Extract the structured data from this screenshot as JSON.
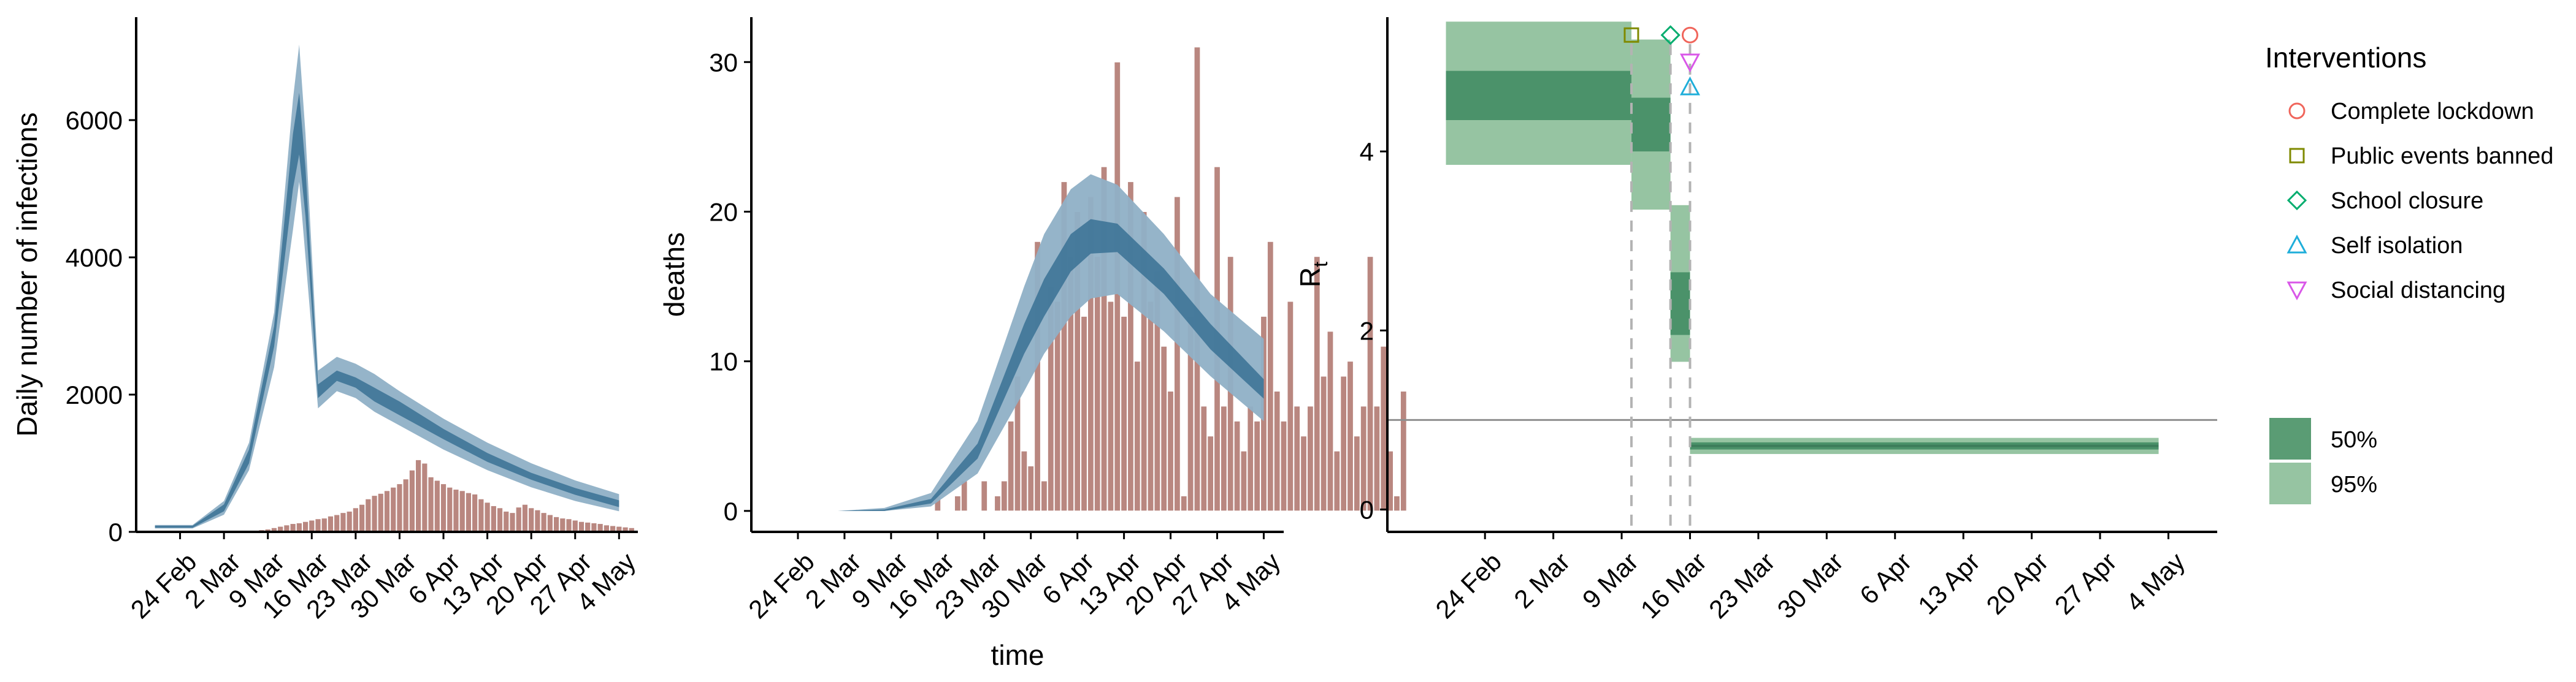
{
  "chart_data": [
    {
      "type": "area",
      "panel": "infections",
      "ylabel": "Daily number of infections",
      "xlabel": "",
      "x_ticks": [
        "24 Feb",
        "2 Mar",
        "9 Mar",
        "16 Mar",
        "23 Mar",
        "30 Mar",
        "6 Apr",
        "13 Apr",
        "20 Apr",
        "27 Apr",
        "4 May"
      ],
      "y_ticks": [
        "0",
        "2000",
        "4000",
        "6000"
      ],
      "ylim": [
        0,
        7500
      ],
      "colors": {
        "band95": "#8fb0c6",
        "band50": "#3e7497",
        "bars": "#b98780"
      },
      "series": [
        {
          "name": "infections_ci95",
          "x": [
            "2020-02-20",
            "2020-02-26",
            "2020-03-02",
            "2020-03-06",
            "2020-03-10",
            "2020-03-13",
            "2020-03-14",
            "2020-03-15",
            "2020-03-17",
            "2020-03-20",
            "2020-03-23",
            "2020-03-26",
            "2020-03-30",
            "2020-04-06",
            "2020-04-13",
            "2020-04-20",
            "2020-04-27",
            "2020-05-04"
          ],
          "lower": [
            50,
            50,
            250,
            900,
            2400,
            4400,
            5100,
            4000,
            1800,
            2050,
            1950,
            1750,
            1550,
            1200,
            900,
            650,
            450,
            300
          ],
          "upper": [
            100,
            100,
            450,
            1300,
            3200,
            6300,
            7100,
            5800,
            2350,
            2550,
            2450,
            2300,
            2050,
            1650,
            1300,
            1000,
            750,
            550
          ]
        },
        {
          "name": "infections_ci50",
          "x": [
            "2020-02-20",
            "2020-02-26",
            "2020-03-02",
            "2020-03-06",
            "2020-03-10",
            "2020-03-13",
            "2020-03-14",
            "2020-03-15",
            "2020-03-17",
            "2020-03-20",
            "2020-03-23",
            "2020-03-26",
            "2020-03-30",
            "2020-04-06",
            "2020-04-13",
            "2020-04-20",
            "2020-04-27",
            "2020-05-04"
          ],
          "lower": [
            60,
            60,
            300,
            1000,
            2700,
            5000,
            5500,
            4600,
            1950,
            2200,
            2100,
            1900,
            1700,
            1350,
            1020,
            760,
            540,
            360
          ],
          "upper": [
            90,
            90,
            400,
            1200,
            3000,
            5800,
            6400,
            5300,
            2150,
            2350,
            2250,
            2100,
            1900,
            1500,
            1150,
            860,
            640,
            460
          ]
        }
      ],
      "bars": {
        "x_start": "2020-03-04",
        "values": [
          0,
          0,
          10,
          20,
          30,
          40,
          60,
          80,
          100,
          120,
          130,
          150,
          170,
          190,
          200,
          230,
          250,
          280,
          300,
          350,
          400,
          480,
          530,
          560,
          600,
          650,
          700,
          770,
          900,
          1050,
          1000,
          800,
          750,
          700,
          650,
          620,
          600,
          570,
          550,
          480,
          430,
          380,
          350,
          300,
          280,
          360,
          400,
          350,
          320,
          280,
          250,
          220,
          200,
          190,
          170,
          150,
          140,
          130,
          120,
          100,
          90,
          80,
          70,
          60
        ]
      }
    },
    {
      "type": "bar",
      "panel": "deaths",
      "ylabel": "deaths",
      "xlabel": "time",
      "x_ticks": [
        "24 Feb",
        "2 Mar",
        "9 Mar",
        "16 Mar",
        "23 Mar",
        "30 Mar",
        "6 Apr",
        "13 Apr",
        "20 Apr",
        "27 Apr",
        "4 May"
      ],
      "y_ticks": [
        "0",
        "10",
        "20",
        "30"
      ],
      "ylim": [
        -1.4,
        33
      ],
      "colors": {
        "band95": "#8fb0c6",
        "band50": "#3e7497",
        "bars": "#b98780"
      },
      "series": [
        {
          "name": "deaths_ci95",
          "x": [
            "2020-03-01",
            "2020-03-08",
            "2020-03-15",
            "2020-03-22",
            "2020-03-29",
            "2020-04-01",
            "2020-04-05",
            "2020-04-08",
            "2020-04-12",
            "2020-04-19",
            "2020-04-26",
            "2020-05-04"
          ],
          "lower": [
            0,
            0,
            0.3,
            2.5,
            8,
            10.5,
            13,
            14.2,
            14.5,
            12,
            9,
            6
          ],
          "upper": [
            0,
            0.2,
            1.2,
            6,
            15,
            18.5,
            21.5,
            22.5,
            21.8,
            18.5,
            14.5,
            11.5
          ]
        },
        {
          "name": "deaths_ci50",
          "x": [
            "2020-03-01",
            "2020-03-08",
            "2020-03-15",
            "2020-03-22",
            "2020-03-29",
            "2020-04-01",
            "2020-04-05",
            "2020-04-08",
            "2020-04-12",
            "2020-04-19",
            "2020-04-26",
            "2020-05-04"
          ],
          "lower": [
            0,
            0,
            0.5,
            3.5,
            10.5,
            13,
            16,
            17.2,
            17.3,
            14.5,
            10.8,
            7.5
          ],
          "upper": [
            0,
            0.1,
            0.8,
            4.5,
            12.5,
            15.5,
            18.5,
            19.5,
            19.2,
            16.2,
            12.5,
            8.8
          ]
        }
      ],
      "bars": {
        "x_start": "2020-03-16",
        "values": [
          1,
          0,
          0,
          1,
          2,
          0,
          0,
          2,
          0,
          1,
          2,
          6,
          9,
          4,
          3,
          18,
          2,
          15,
          14,
          22,
          17,
          20,
          13,
          21,
          17,
          23,
          14,
          30,
          13,
          22,
          10,
          20,
          14,
          16,
          11,
          8,
          21,
          1,
          13,
          31,
          7,
          5,
          23,
          7,
          17,
          6,
          4,
          7,
          6,
          13,
          18,
          8,
          6,
          14,
          7,
          5,
          7,
          17,
          9,
          12,
          4,
          9,
          10,
          5,
          7,
          17,
          7,
          11,
          4,
          1,
          8
        ]
      }
    },
    {
      "type": "line",
      "panel": "Rt",
      "ylabel": "R",
      "ylabel_sub": "t",
      "xlabel": "",
      "x_ticks": [
        "24 Feb",
        "2 Mar",
        "9 Mar",
        "16 Mar",
        "23 Mar",
        "30 Mar",
        "6 Apr",
        "13 Apr",
        "20 Apr",
        "27 Apr",
        "4 May"
      ],
      "y_ticks": [
        "0",
        "2",
        "4"
      ],
      "ylim": [
        -0.25,
        5.5
      ],
      "reference_line": 1,
      "colors": {
        "band95": "#96c4a2",
        "band50": "#4b926a",
        "median": "#3c7d5a",
        "refline": "#8f8f8f",
        "dashed": "#b3b3b3"
      },
      "segments": [
        {
          "start": "2020-02-20",
          "end": "2020-03-10",
          "ci95": [
            3.85,
            5.45
          ],
          "ci50": [
            4.35,
            4.9
          ]
        },
        {
          "start": "2020-03-10",
          "end": "2020-03-14",
          "ci95": [
            3.35,
            5.25
          ],
          "ci50": [
            4.0,
            4.6
          ]
        },
        {
          "start": "2020-03-14",
          "end": "2020-03-16",
          "ci95": [
            1.65,
            3.4
          ],
          "ci50": [
            1.95,
            2.65
          ]
        },
        {
          "start": "2020-03-16",
          "end": "2020-05-03",
          "ci95": [
            0.62,
            0.8
          ],
          "ci50": [
            0.67,
            0.75
          ],
          "median": 0.71
        }
      ],
      "interventions": [
        {
          "name": "Public events banned",
          "date": "2020-03-10",
          "y": 5.3,
          "marker": "square",
          "color": "#7f8a00"
        },
        {
          "name": "School closure",
          "date": "2020-03-14",
          "y": 5.3,
          "marker": "diamond",
          "color": "#00ad6e"
        },
        {
          "name": "Complete lockdown",
          "date": "2020-03-16",
          "y": 5.3,
          "marker": "circle",
          "color": "#f0655b"
        },
        {
          "name": "Social distancing",
          "date": "2020-03-16",
          "y": 5.0,
          "marker": "triangle-down",
          "color": "#d957e8"
        },
        {
          "name": "Self isolation",
          "date": "2020-03-16",
          "y": 4.72,
          "marker": "triangle-up",
          "color": "#1faeda"
        }
      ],
      "legend": {
        "title": "Interventions",
        "items": [
          {
            "label": "Complete lockdown",
            "marker": "circle",
            "color": "#f0655b"
          },
          {
            "label": "Public events banned",
            "marker": "square",
            "color": "#7f8a00"
          },
          {
            "label": "School closure",
            "marker": "diamond",
            "color": "#00ad6e"
          },
          {
            "label": "Self isolation",
            "marker": "triangle-up",
            "color": "#1faeda"
          },
          {
            "label": "Social distancing",
            "marker": "triangle-down",
            "color": "#d957e8"
          }
        ],
        "fill_items": [
          {
            "label": "50%",
            "color": "#5a9c74"
          },
          {
            "label": "95%",
            "color": "#96c4a2"
          }
        ],
        "position": "right"
      }
    }
  ]
}
